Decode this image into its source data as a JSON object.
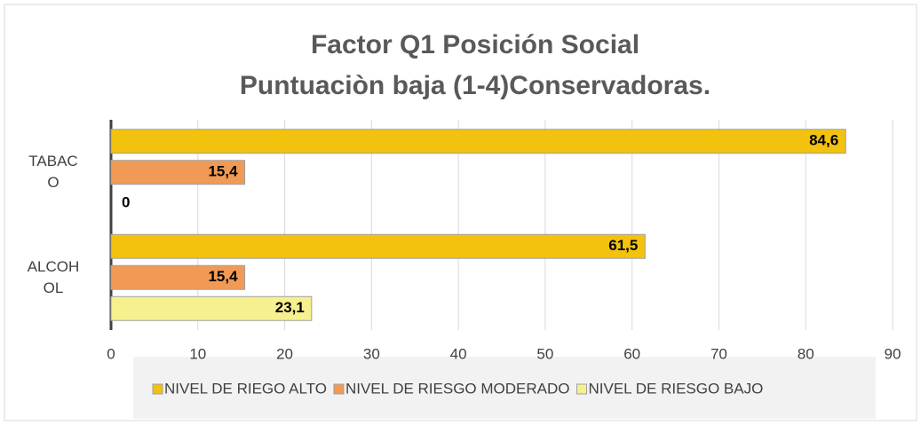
{
  "chart_data": {
    "type": "hbar",
    "title": [
      "Factor Q1 Posición Social",
      "Puntuaciòn baja (1-4)Conservadoras."
    ],
    "categories": [
      "TABACO",
      "ALCOHOL"
    ],
    "series": [
      {
        "name": "NIVEL DE RIEGO ALTO",
        "color": "#f2c20f",
        "values": [
          84.6,
          61.5
        ],
        "value_labels": [
          "84,6",
          "61,5"
        ]
      },
      {
        "name": "NIVEL DE RIESGO MODERADO",
        "color": "#f09a55",
        "values": [
          15.4,
          15.4
        ],
        "value_labels": [
          "15,4",
          "15,4"
        ]
      },
      {
        "name": "NIVEL DE RIESGO BAJO",
        "color": "#f6f08e",
        "values": [
          0,
          23.1
        ],
        "value_labels": [
          "0",
          "23,1"
        ]
      }
    ],
    "xlim": [
      0,
      90
    ],
    "xticks": [
      0,
      10,
      20,
      30,
      40,
      50,
      60,
      70,
      80,
      90
    ],
    "grid": true
  }
}
